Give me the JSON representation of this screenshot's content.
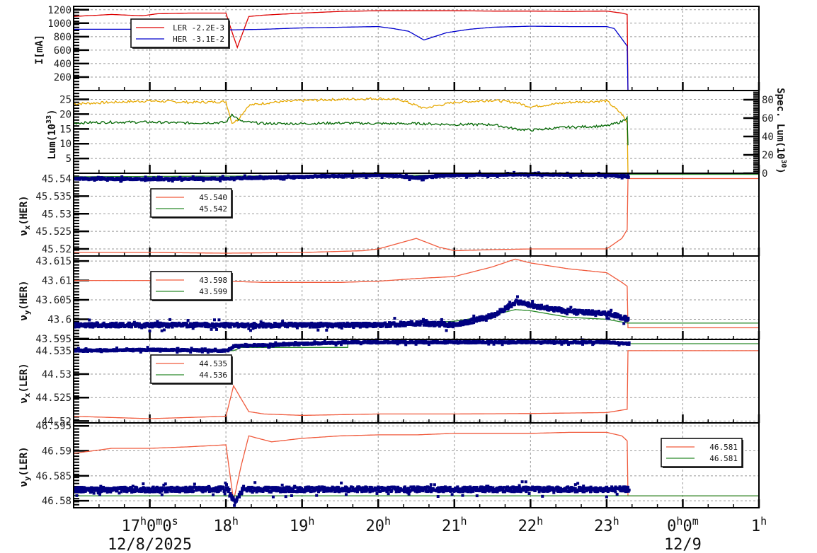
{
  "chart_data": [
    {
      "type": "line",
      "panel": "beam-current",
      "ylabel": "I[mA]",
      "ylim": [
        0,
        1250
      ],
      "yticks": [
        200,
        400,
        600,
        800,
        1000,
        1200
      ],
      "grid": true,
      "legend": {
        "position": "upper-left",
        "entries": [
          {
            "name": "LER",
            "value": "-2.2E-3",
            "color": "#dd0000"
          },
          {
            "name": "HER",
            "value": "-3.1E-2",
            "color": "#0000cc"
          }
        ]
      },
      "series": [
        {
          "name": "LER",
          "color": "#dd0000",
          "x": [
            16.0,
            16.5,
            16.9,
            17.1,
            17.5,
            18.0,
            18.1,
            18.15,
            18.3,
            18.5,
            19.0,
            19.5,
            20.0,
            20.5,
            21.0,
            21.5,
            22.0,
            22.5,
            23.0,
            23.2,
            23.27,
            23.28,
            24.0,
            25.0
          ],
          "y": [
            1100,
            1130,
            1110,
            1140,
            1150,
            1150,
            800,
            640,
            1100,
            1120,
            1150,
            1175,
            1185,
            1185,
            1185,
            1180,
            1180,
            1175,
            1180,
            1150,
            1130,
            0,
            0,
            0
          ]
        },
        {
          "name": "HER",
          "color": "#0000cc",
          "x": [
            16.0,
            17.0,
            18.0,
            18.5,
            19.0,
            19.5,
            20.0,
            20.2,
            20.4,
            20.6,
            20.9,
            21.2,
            21.5,
            22.0,
            22.5,
            23.0,
            23.1,
            23.27,
            23.28,
            24.0,
            25.0
          ],
          "y": [
            910,
            910,
            900,
            910,
            930,
            940,
            950,
            920,
            880,
            750,
            860,
            910,
            940,
            955,
            950,
            950,
            920,
            660,
            0,
            0,
            0
          ]
        }
      ]
    },
    {
      "type": "line",
      "panel": "luminosity",
      "ylabel": "Lum(10^33)",
      "ylabel2": "Spec. Lum(10^30)",
      "ylim": [
        0,
        28
      ],
      "yticks": [
        5,
        10,
        15,
        20,
        25
      ],
      "ylim2": [
        0,
        90
      ],
      "yticks2": [
        0,
        20,
        40,
        60,
        80
      ],
      "grid": true,
      "series": [
        {
          "name": "Lum",
          "color": "#e6a800",
          "x": [
            16.0,
            16.5,
            17.0,
            17.5,
            18.0,
            18.08,
            18.15,
            18.3,
            18.6,
            19.0,
            19.5,
            20.0,
            20.3,
            20.6,
            21.0,
            21.5,
            21.8,
            22.0,
            22.5,
            23.0,
            23.2,
            23.27,
            23.28
          ],
          "y": [
            23.5,
            24,
            24.5,
            24,
            24.2,
            17,
            18,
            23,
            24,
            24.6,
            25,
            25.3,
            24.8,
            22,
            24,
            24.7,
            24,
            22.5,
            24,
            24.5,
            20,
            17,
            0
          ]
        },
        {
          "name": "Spec. Lum",
          "color": "#006600",
          "x": [
            16.0,
            16.5,
            17.0,
            17.5,
            18.0,
            18.08,
            18.2,
            18.5,
            19.0,
            19.5,
            20.0,
            20.5,
            21.0,
            21.5,
            21.8,
            22.0,
            22.5,
            23.0,
            23.2,
            23.27,
            23.28
          ],
          "y": [
            17,
            17.3,
            17.3,
            17,
            17.2,
            20,
            17.5,
            16.8,
            16.8,
            17,
            16.8,
            16.8,
            16.5,
            16.5,
            15,
            14.6,
            15.6,
            16,
            17.5,
            19,
            9.5
          ]
        }
      ]
    },
    {
      "type": "line",
      "panel": "nu-x-HER",
      "ylabel": "νx(HER)",
      "ylim": [
        45.518,
        45.5415
      ],
      "yticks": [
        45.52,
        45.525,
        45.53,
        45.535,
        45.54
      ],
      "ytick_labels": [
        "45.52",
        "45.525",
        "45.53",
        "45.535",
        "45.54"
      ],
      "grid": true,
      "legend": {
        "position": "upper-left",
        "entries": [
          {
            "value": "45.540",
            "color": "#f05a3c"
          },
          {
            "value": "45.542",
            "color": "#2a8a2a"
          }
        ]
      },
      "series": [
        {
          "name": "set-red",
          "color": "#f05a3c",
          "x": [
            16.0,
            17.0,
            18.0,
            19.0,
            19.8,
            20.0,
            20.5,
            20.8,
            21.0,
            21.5,
            22.0,
            22.5,
            23.0,
            23.2,
            23.27,
            23.28,
            25.0
          ],
          "y": [
            45.519,
            45.519,
            45.5188,
            45.519,
            45.5195,
            45.52,
            45.523,
            45.5205,
            45.5195,
            45.5198,
            45.52,
            45.52,
            45.52,
            45.523,
            45.5255,
            45.54,
            45.54
          ]
        },
        {
          "name": "set-green",
          "color": "#2a8a2a",
          "x": [
            16.0,
            23.28,
            25.0
          ],
          "y": [
            45.5405,
            45.5412,
            45.5412
          ]
        },
        {
          "name": "measured",
          "color": "#000080",
          "style": "scatter",
          "x": [
            16.0,
            17.0,
            18.0,
            19.0,
            20.0,
            20.5,
            21.0,
            22.0,
            23.0,
            23.27
          ],
          "y": [
            45.54,
            45.5398,
            45.54,
            45.5405,
            45.541,
            45.5402,
            45.541,
            45.5412,
            45.541,
            45.5405
          ]
        }
      ]
    },
    {
      "type": "line",
      "panel": "nu-y-HER",
      "ylabel": "νy(HER)",
      "ylim": [
        43.5948,
        43.6163
      ],
      "yticks": [
        43.595,
        43.6,
        43.605,
        43.61,
        43.615
      ],
      "ytick_labels": [
        "43.595",
        "43.6",
        "43.605",
        "43.61",
        "43.615"
      ],
      "grid": true,
      "legend": {
        "position": "upper-left",
        "entries": [
          {
            "value": "43.598",
            "color": "#f05a3c"
          },
          {
            "value": "43.599",
            "color": "#2a8a2a"
          }
        ]
      },
      "series": [
        {
          "name": "set-red",
          "color": "#f05a3c",
          "x": [
            16.0,
            17.0,
            17.1,
            18.0,
            18.5,
            19.0,
            19.5,
            20.0,
            20.5,
            21.0,
            21.5,
            21.8,
            22.0,
            22.5,
            23.0,
            23.2,
            23.27,
            23.28,
            25.0
          ],
          "y": [
            43.61,
            43.61,
            43.6095,
            43.6098,
            43.6095,
            43.6095,
            43.6095,
            43.6098,
            43.6105,
            43.611,
            43.6135,
            43.6155,
            43.6145,
            43.613,
            43.612,
            43.6095,
            43.6085,
            43.5978,
            43.5978
          ]
        },
        {
          "name": "set-green",
          "color": "#2a8a2a",
          "x": [
            16.0,
            20.0,
            20.5,
            21.0,
            21.5,
            21.8,
            22.0,
            22.5,
            23.0,
            23.28,
            25.0
          ],
          "y": [
            43.5985,
            43.5985,
            43.599,
            43.5995,
            43.601,
            43.6025,
            43.6022,
            43.6005,
            43.6,
            43.599,
            43.599
          ]
        },
        {
          "name": "measured",
          "color": "#000080",
          "style": "scatter",
          "x": [
            16.0,
            17.0,
            18.0,
            19.0,
            20.0,
            20.5,
            21.0,
            21.5,
            21.8,
            22.0,
            22.5,
            23.0,
            23.27
          ],
          "y": [
            43.5985,
            43.5985,
            43.5985,
            43.5985,
            43.5985,
            43.599,
            43.5985,
            43.601,
            43.6045,
            43.6035,
            43.602,
            43.6015,
            43.6
          ]
        }
      ]
    },
    {
      "type": "line",
      "panel": "nu-x-LER",
      "ylabel": "νx(LER)",
      "ylim": [
        44.5196,
        44.5374
      ],
      "yticks": [
        44.52,
        44.525,
        44.53,
        44.535
      ],
      "ytick_labels": [
        "44.52",
        "44.525",
        "44.53",
        "44.535"
      ],
      "grid": true,
      "legend": {
        "position": "upper-left",
        "entries": [
          {
            "value": "44.535",
            "color": "#f05a3c"
          },
          {
            "value": "44.536",
            "color": "#2a8a2a"
          }
        ]
      },
      "series": [
        {
          "name": "set-red",
          "color": "#f05a3c",
          "x": [
            16.0,
            17.0,
            18.0,
            18.1,
            18.3,
            18.5,
            19.0,
            20.0,
            21.0,
            22.0,
            23.0,
            23.27,
            23.28,
            25.0
          ],
          "y": [
            44.521,
            44.5205,
            44.521,
            44.5275,
            44.522,
            44.5215,
            44.5212,
            44.5215,
            44.5215,
            44.5216,
            44.5218,
            44.5225,
            44.535,
            44.535
          ]
        },
        {
          "name": "set-green",
          "color": "#2a8a2a",
          "x": [
            16.0,
            18.1,
            18.2,
            19.6,
            19.6,
            23.28,
            25.0
          ],
          "y": [
            44.535,
            44.535,
            44.5357,
            44.5357,
            44.5367,
            44.5365,
            44.5365
          ]
        },
        {
          "name": "measured",
          "color": "#000080",
          "style": "scatter",
          "x": [
            16.0,
            17.0,
            18.0,
            18.1,
            18.5,
            19.6,
            20.0,
            21.0,
            22.0,
            23.0,
            23.27
          ],
          "y": [
            44.535,
            44.5352,
            44.535,
            44.536,
            44.5362,
            44.5368,
            44.5368,
            44.5368,
            44.5368,
            44.5368,
            44.5365
          ]
        }
      ]
    },
    {
      "type": "line",
      "panel": "nu-y-LER",
      "ylabel": "νy(LER)",
      "ylim": [
        46.5786,
        46.5956
      ],
      "yticks": [
        46.58,
        46.585,
        46.59,
        46.595
      ],
      "ytick_labels": [
        "46.58",
        "46.585",
        "46.59",
        "46.595"
      ],
      "grid": true,
      "legend": {
        "position": "upper-right",
        "entries": [
          {
            "value": "46.581",
            "color": "#f05a3c"
          },
          {
            "value": "46.581",
            "color": "#2a8a2a"
          }
        ]
      },
      "series": [
        {
          "name": "set-red",
          "color": "#f05a3c",
          "x": [
            16.0,
            16.5,
            17.0,
            17.5,
            18.0,
            18.1,
            18.2,
            18.3,
            18.6,
            19.0,
            19.5,
            20.0,
            20.5,
            21.0,
            21.5,
            22.0,
            22.5,
            23.0,
            23.2,
            23.27,
            23.28,
            25.0
          ],
          "y": [
            46.5895,
            46.5905,
            46.5905,
            46.5908,
            46.5912,
            46.58,
            46.587,
            46.593,
            46.5918,
            46.5925,
            46.593,
            46.5932,
            46.5932,
            46.5935,
            46.5935,
            46.5935,
            46.5937,
            46.5937,
            46.593,
            46.592,
            46.581,
            46.581
          ]
        },
        {
          "name": "set-green",
          "color": "#2a8a2a",
          "x": [
            16.0,
            25.0
          ],
          "y": [
            46.581,
            46.581
          ]
        },
        {
          "name": "measured",
          "color": "#000080",
          "style": "scatter",
          "x": [
            16.0,
            18.0,
            18.1,
            18.2,
            19.0,
            20.0,
            21.0,
            22.0,
            23.0,
            23.27
          ],
          "y": [
            46.5822,
            46.5823,
            46.5795,
            46.5822,
            46.5823,
            46.5823,
            46.5823,
            46.5823,
            46.5823,
            46.5823
          ]
        }
      ]
    }
  ],
  "x_axis": {
    "range": [
      16.0,
      25.0
    ],
    "major_ticks": [
      {
        "t": 17,
        "label": "17",
        "sup": "h",
        "label2": "0",
        "sup2": "m",
        "label3": "0",
        "sup3": "s"
      },
      {
        "t": 18,
        "label": "18",
        "sup": "h"
      },
      {
        "t": 19,
        "label": "19",
        "sup": "h"
      },
      {
        "t": 20,
        "label": "20",
        "sup": "h"
      },
      {
        "t": 21,
        "label": "21",
        "sup": "h"
      },
      {
        "t": 22,
        "label": "22",
        "sup": "h"
      },
      {
        "t": 23,
        "label": "23",
        "sup": "h"
      },
      {
        "t": 24,
        "label": "0",
        "sup": "h",
        "label2": "0",
        "sup2": "m"
      },
      {
        "t": 25,
        "label": "1",
        "sup": "h"
      }
    ],
    "dates": [
      {
        "t": 17,
        "label": "12/8/2025"
      },
      {
        "t": 24,
        "label": "12/9"
      }
    ]
  },
  "labels": {
    "current_ylabel": "I[mA]",
    "lum_ylabel": "Lum(10",
    "lum_ylabel_sup": "33",
    "lum_ylabel_end": ")",
    "speclum_ylabel": "Spec. Lum(10",
    "speclum_ylabel_sup": "30",
    "speclum_ylabel_end": ")",
    "nux_her": "ν",
    "nux_her_sub": "x",
    "nux_her_end": "(HER)",
    "nuy_her": "ν",
    "nuy_her_sub": "y",
    "nuy_her_end": "(HER)",
    "nux_ler": "ν",
    "nux_ler_sub": "x",
    "nux_ler_end": "(LER)",
    "nuy_ler": "ν",
    "nuy_ler_sub": "y",
    "nuy_ler_end": "(LER)"
  }
}
